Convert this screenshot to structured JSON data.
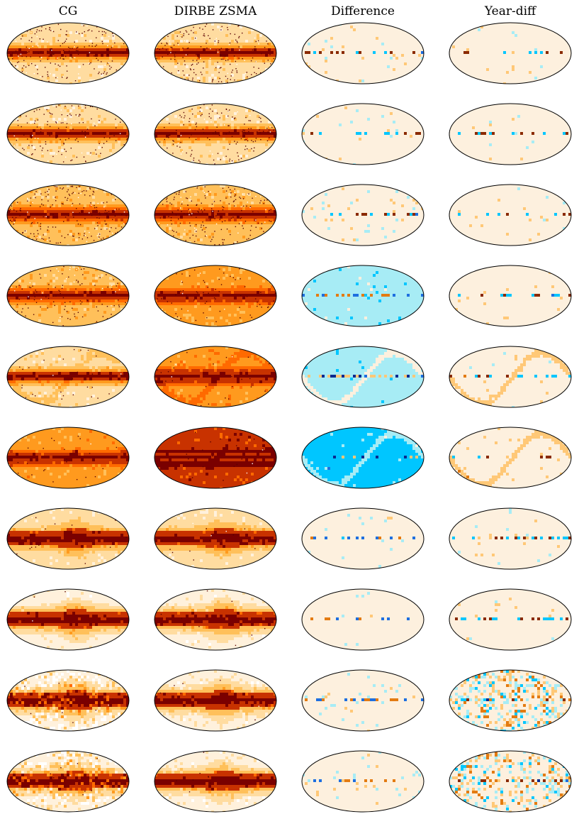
{
  "columns": [
    "CG",
    "DIRBE ZSMA",
    "Difference",
    "Year-diff"
  ],
  "rows": 10,
  "palettes": {
    "map": [
      "#ffffff",
      "#fff1dc",
      "#ffdca0",
      "#ffc05a",
      "#ff9a1e",
      "#ff6a00",
      "#c83200",
      "#7a0000"
    ],
    "diff": [
      "#0a2a8f",
      "#1e6fe0",
      "#00c6ff",
      "#a7ecf5",
      "#fdf0de",
      "#ffc877",
      "#e37b12",
      "#8a2a00"
    ]
  },
  "row_styles": [
    {
      "cg": {
        "bg": 2,
        "band": 7,
        "noise": 0.3,
        "dots": 0.28
      },
      "zsma": {
        "bg": 2,
        "band": 7,
        "noise": 0.3,
        "dots": 0.28
      },
      "diff": {
        "bg": 4,
        "noise": 0.1
      },
      "year": {
        "bg": 4,
        "noise": 0.04
      }
    },
    {
      "cg": {
        "bg": 2,
        "band": 7,
        "noise": 0.3,
        "dots": 0.22
      },
      "zsma": {
        "bg": 2,
        "band": 7,
        "noise": 0.3,
        "dots": 0.22
      },
      "diff": {
        "bg": 4,
        "noise": 0.09
      },
      "year": {
        "bg": 4,
        "noise": 0.04
      }
    },
    {
      "cg": {
        "bg": 3,
        "band": 7,
        "noise": 0.3,
        "dots": 0.3
      },
      "zsma": {
        "bg": 3,
        "band": 7,
        "noise": 0.3,
        "dots": 0.3
      },
      "diff": {
        "bg": 4,
        "noise": 0.12
      },
      "year": {
        "bg": 4,
        "noise": 0.06
      }
    },
    {
      "cg": {
        "bg": 3,
        "band": 7,
        "noise": 0.3,
        "dots": 0.18
      },
      "zsma": {
        "bg": 3.5,
        "band": 7,
        "noise": 0.3,
        "dots": 0.1
      },
      "diff": {
        "bg": 3,
        "noise": 0.08
      },
      "year": {
        "bg": 4.3,
        "noise": 0.05
      }
    },
    {
      "cg": {
        "bg": 2,
        "band": 7,
        "noise": 0.25,
        "dots": 0.04,
        "zodi": 1
      },
      "zsma": {
        "bg": 4,
        "band": 7,
        "noise": 0.25,
        "dots": 0.04,
        "zodi": 1
      },
      "diff": {
        "bg": 2.7,
        "noise": 0.05,
        "zodi": 1
      },
      "year": {
        "bg": 4,
        "noise": 0.06,
        "zodi": 1
      }
    },
    {
      "cg": {
        "bg": 3.5,
        "band": 7,
        "noise": 0.25,
        "dots": 0.04,
        "zodi": 1
      },
      "zsma": {
        "bg": 5.6,
        "band": 7,
        "noise": 0.25,
        "dots": 0.03,
        "zodi": 1
      },
      "diff": {
        "bg": 2.2,
        "noise": 0.05,
        "zodi": 1
      },
      "year": {
        "bg": 4.4,
        "noise": 0.06,
        "zodi": 1
      }
    },
    {
      "cg": {
        "bg": 1.5,
        "band": 7,
        "noise": 0.25,
        "dots": 0.02,
        "bulge": 1
      },
      "zsma": {
        "bg": 1.5,
        "band": 7,
        "noise": 0.25,
        "dots": 0.02,
        "bulge": 1
      },
      "diff": {
        "bg": 3.5,
        "noise": 0.05,
        "zodi": 1
      },
      "year": {
        "bg": 4,
        "noise": 0.06
      }
    },
    {
      "cg": {
        "bg": 1.2,
        "band": 7,
        "noise": 0.25,
        "dots": 0.01,
        "bulge": 1
      },
      "zsma": {
        "bg": 1.2,
        "band": 7,
        "noise": 0.25,
        "dots": 0.01,
        "bulge": 1
      },
      "diff": {
        "bg": 3.8,
        "noise": 0.04
      },
      "year": {
        "bg": 4.1,
        "noise": 0.04
      }
    },
    {
      "cg": {
        "bg": 1.2,
        "band": 7,
        "noise": 0.45,
        "dots": 0.02,
        "bulge": 1,
        "speckle": 1
      },
      "zsma": {
        "bg": 1.2,
        "band": 7,
        "noise": 0.3,
        "dots": 0.01,
        "bulge": 1
      },
      "diff": {
        "bg": 3.8,
        "noise": 0.1
      },
      "year": {
        "bg": 4,
        "noise": 0.45,
        "speckle": 1
      }
    },
    {
      "cg": {
        "bg": 1.1,
        "band": 7,
        "noise": 0.45,
        "dots": 0.02,
        "bulge": 1,
        "speckle": 1
      },
      "zsma": {
        "bg": 1.1,
        "band": 7,
        "noise": 0.3,
        "dots": 0.01,
        "bulge": 1
      },
      "diff": {
        "bg": 3.9,
        "noise": 0.09
      },
      "year": {
        "bg": 4,
        "noise": 0.4,
        "speckle": 1
      }
    }
  ]
}
